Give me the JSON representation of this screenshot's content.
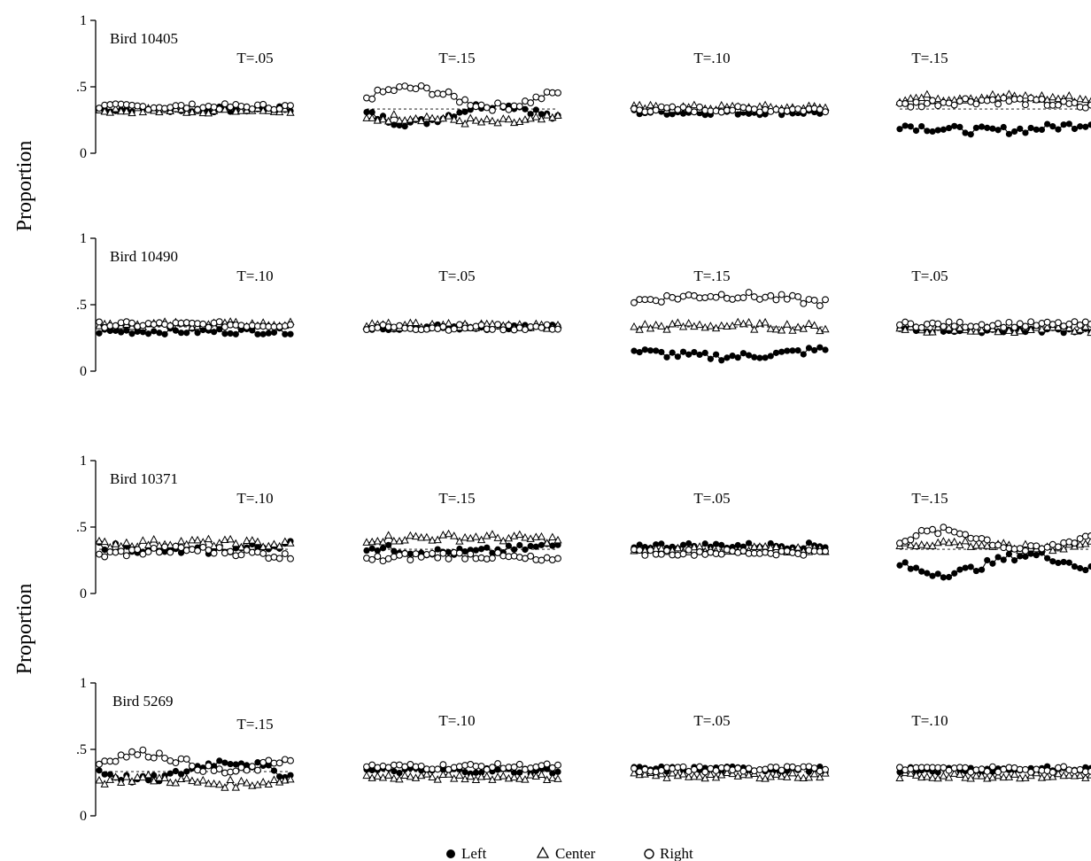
{
  "chart_data": {
    "type": "line",
    "ylabel": "Proportion",
    "ylim": [
      0,
      1
    ],
    "y_tick_labels": [
      "0",
      ".5",
      "1"
    ],
    "grid": false,
    "legend_position": "bottom-center",
    "series_names": [
      "Left",
      "Center",
      "Right"
    ],
    "reference_value": 0.333,
    "rows": [
      {
        "bird_label": "Bird 10405",
        "panels": [
          {
            "label": "T=.05",
            "variant": "flat",
            "L": 0.33,
            "C": 0.32,
            "R": 0.35
          },
          {
            "label": "T=.15",
            "variant": "crossing",
            "L": 0.3,
            "C": 0.25,
            "R": 0.42
          },
          {
            "label": "T=.10",
            "variant": "flat",
            "L": 0.31,
            "C": 0.34,
            "R": 0.33
          },
          {
            "label": "T=.15",
            "variant": "spread",
            "L": 0.24,
            "C": 0.4,
            "R": 0.33
          }
        ]
      },
      {
        "bird_label": "Bird 10490",
        "panels": [
          {
            "label": "T=.10",
            "variant": "flat",
            "L": 0.3,
            "C": 0.35,
            "R": 0.35
          },
          {
            "label": "T=.05",
            "variant": "flat",
            "L": 0.33,
            "C": 0.34,
            "R": 0.33
          },
          {
            "label": "T=.15",
            "variant": "spread",
            "L": 0.18,
            "C": 0.32,
            "R": 0.5
          },
          {
            "label": "T=.05",
            "variant": "flat",
            "L": 0.31,
            "C": 0.31,
            "R": 0.35
          }
        ]
      },
      {
        "bird_label": "Bird 10371",
        "panels": [
          {
            "label": "T=.10",
            "variant": "spread",
            "L": 0.39,
            "C": 0.36,
            "R": 0.26
          },
          {
            "label": "T=.15",
            "variant": "spread",
            "L": 0.38,
            "C": 0.4,
            "R": 0.22
          },
          {
            "label": "T=.05",
            "variant": "flat",
            "L": 0.36,
            "C": 0.33,
            "R": 0.31
          },
          {
            "label": "T=.15",
            "variant": "crossing",
            "L": 0.22,
            "C": 0.36,
            "R": 0.4
          }
        ]
      },
      {
        "bird_label": "Bird 5269",
        "panels": [
          {
            "label": "T=.15",
            "variant": "crossing",
            "L": 0.34,
            "C": 0.26,
            "R": 0.4
          },
          {
            "label": "T=.10",
            "variant": "flat",
            "L": 0.34,
            "C": 0.29,
            "R": 0.37
          },
          {
            "label": "T=.05",
            "variant": "flat",
            "L": 0.35,
            "C": 0.3,
            "R": 0.35
          },
          {
            "label": "T=.10",
            "variant": "flat",
            "L": 0.35,
            "C": 0.3,
            "R": 0.35
          }
        ]
      }
    ]
  },
  "legend": {
    "left": "Left",
    "center": "Center",
    "right": "Right"
  }
}
